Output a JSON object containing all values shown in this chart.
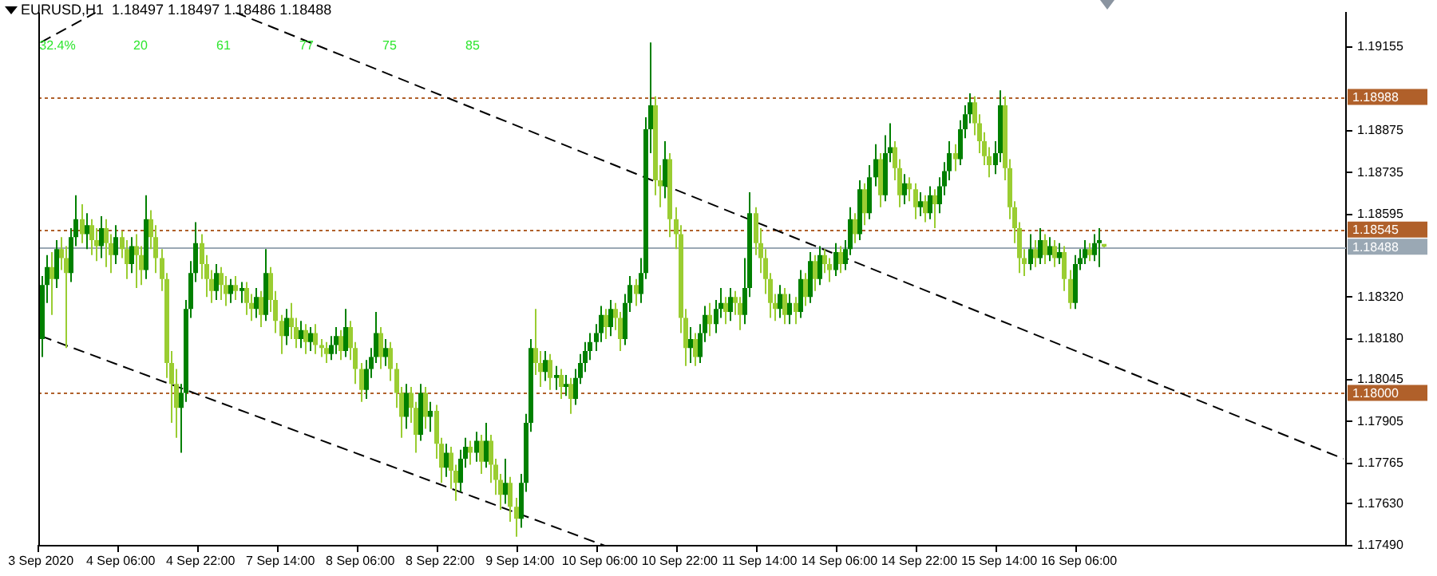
{
  "chart_data": {
    "type": "candlestick",
    "title": "EURUSD,H1  1.18497 1.18497 1.18486 1.18488",
    "categories": [
      "3 Sep 2020",
      null,
      null,
      null,
      null,
      null,
      null,
      null,
      null,
      null,
      null,
      null,
      null,
      null,
      null,
      null,
      "4 Sep 06:00",
      null,
      null,
      null,
      null,
      null,
      null,
      null,
      null,
      null,
      null,
      null,
      null,
      null,
      null,
      null,
      "4 Sep 22:00",
      null,
      null,
      null,
      null,
      null,
      null,
      null,
      null,
      null,
      null,
      null,
      null,
      null,
      null,
      null,
      "7 Sep 14:00",
      null,
      null,
      null,
      null,
      null,
      null,
      null,
      null,
      null,
      null,
      null,
      null,
      null,
      null,
      null,
      "8 Sep 06:00",
      null,
      null,
      null,
      null,
      null,
      null,
      null,
      null,
      null,
      null,
      null,
      null,
      null,
      null,
      null,
      "8 Sep 22:00",
      null,
      null,
      null,
      null,
      null,
      null,
      null,
      null,
      null,
      null,
      null,
      null,
      null,
      null,
      null,
      "9 Sep 14:00",
      null,
      null,
      null,
      null,
      null,
      null,
      null,
      null,
      null,
      null,
      null,
      null,
      null,
      null,
      null,
      "10 Sep 06:00",
      null,
      null,
      null,
      null,
      null,
      null,
      null,
      null,
      null,
      null,
      null,
      null,
      null,
      null,
      null,
      "10 Sep 22:00",
      null,
      null,
      null,
      null,
      null,
      null,
      null,
      null,
      null,
      null,
      null,
      null,
      null,
      null,
      null,
      "11 Sep 14:00",
      null,
      null,
      null,
      null,
      null,
      null,
      null,
      null,
      null,
      null,
      null,
      null,
      null,
      null,
      null,
      "14 Sep 06:00",
      null,
      null,
      null,
      null,
      null,
      null,
      null,
      null,
      null,
      null,
      null,
      null,
      null,
      null,
      null,
      "14 Sep 22:00",
      null,
      null,
      null,
      null,
      null,
      null,
      null,
      null,
      null,
      null,
      null,
      null,
      null,
      null,
      null,
      "15 Sep 14:00",
      null,
      null,
      null,
      null,
      null,
      null,
      null,
      null,
      null,
      null,
      null,
      null,
      null,
      null,
      null,
      "16 Sep 06:00",
      null,
      null,
      null,
      null,
      null,
      null,
      null,
      null,
      null,
      null,
      null,
      null,
      null,
      null,
      null,
      null,
      null,
      null,
      null,
      null,
      null,
      null,
      null,
      null,
      null,
      null,
      null,
      null,
      null,
      null,
      null,
      null,
      null,
      null,
      null,
      null,
      null,
      null,
      null,
      null,
      null,
      null,
      null,
      null,
      null,
      null,
      null,
      null,
      null,
      null,
      null,
      null,
      null
    ],
    "ohlc": [
      [
        1.1818,
        1.1839,
        1.1812,
        1.1836
      ],
      [
        1.1836,
        1.1846,
        1.183,
        1.1842
      ],
      [
        1.1842,
        1.1847,
        1.1826,
        1.1838
      ],
      [
        1.1838,
        1.1851,
        1.1835,
        1.1848
      ],
      [
        1.1848,
        1.1852,
        1.1841,
        1.1845
      ],
      [
        1.1845,
        1.1849,
        1.1815,
        1.184
      ],
      [
        1.184,
        1.1855,
        1.1837,
        1.1852
      ],
      [
        1.1852,
        1.1866,
        1.1849,
        1.1858
      ],
      [
        1.1858,
        1.1863,
        1.185,
        1.1853
      ],
      [
        1.1853,
        1.186,
        1.1848,
        1.1856
      ],
      [
        1.1856,
        1.1858,
        1.1846,
        1.1851
      ],
      [
        1.1851,
        1.1855,
        1.1844,
        1.1849
      ],
      [
        1.1849,
        1.1859,
        1.1845,
        1.1855
      ],
      [
        1.1855,
        1.1858,
        1.1842,
        1.185
      ],
      [
        1.185,
        1.1853,
        1.184,
        1.1846
      ],
      [
        1.1846,
        1.1856,
        1.1843,
        1.1852
      ],
      [
        1.1852,
        1.1854,
        1.1845,
        1.1848
      ],
      [
        1.1848,
        1.1851,
        1.1838,
        1.1843
      ],
      [
        1.1843,
        1.1852,
        1.184,
        1.1849
      ],
      [
        1.1849,
        1.1853,
        1.1835,
        1.1846
      ],
      [
        1.1846,
        1.1849,
        1.1836,
        1.1841
      ],
      [
        1.1841,
        1.1866,
        1.1838,
        1.1858
      ],
      [
        1.1858,
        1.1861,
        1.1848,
        1.1852
      ],
      [
        1.1852,
        1.1856,
        1.184,
        1.1845
      ],
      [
        1.1845,
        1.1848,
        1.1834,
        1.1838
      ],
      [
        1.1838,
        1.184,
        1.1805,
        1.181
      ],
      [
        1.181,
        1.1814,
        1.179,
        1.1803
      ],
      [
        1.1803,
        1.1808,
        1.1785,
        1.1795
      ],
      [
        1.1795,
        1.1803,
        1.178,
        1.18
      ],
      [
        1.18,
        1.1831,
        1.1797,
        1.1828
      ],
      [
        1.1828,
        1.1844,
        1.1825,
        1.184
      ],
      [
        1.184,
        1.1857,
        1.1837,
        1.185
      ],
      [
        1.185,
        1.1853,
        1.1838,
        1.1843
      ],
      [
        1.1843,
        1.1846,
        1.1832,
        1.1838
      ],
      [
        1.1838,
        1.1841,
        1.183,
        1.1834
      ],
      [
        1.1834,
        1.1843,
        1.1831,
        1.184
      ],
      [
        1.184,
        1.1842,
        1.1831,
        1.1836
      ],
      [
        1.1836,
        1.1839,
        1.1829,
        1.1833
      ],
      [
        1.1833,
        1.1838,
        1.183,
        1.1836
      ],
      [
        1.1836,
        1.1839,
        1.1831,
        1.1834
      ],
      [
        1.1834,
        1.1837,
        1.183,
        1.1835
      ],
      [
        1.1835,
        1.1837,
        1.1826,
        1.183
      ],
      [
        1.183,
        1.1833,
        1.1824,
        1.1828
      ],
      [
        1.1828,
        1.1835,
        1.1825,
        1.1832
      ],
      [
        1.1832,
        1.1834,
        1.1822,
        1.1826
      ],
      [
        1.1826,
        1.1848,
        1.1824,
        1.184
      ],
      [
        1.184,
        1.1842,
        1.1827,
        1.1831
      ],
      [
        1.1831,
        1.1834,
        1.182,
        1.1824
      ],
      [
        1.1824,
        1.1826,
        1.1813,
        1.1819
      ],
      [
        1.1819,
        1.1828,
        1.1816,
        1.1825
      ],
      [
        1.1825,
        1.183,
        1.1818,
        1.1822
      ],
      [
        1.1822,
        1.1825,
        1.1815,
        1.1818
      ],
      [
        1.1818,
        1.1824,
        1.1815,
        1.1821
      ],
      [
        1.1821,
        1.1823,
        1.1813,
        1.1817
      ],
      [
        1.1817,
        1.1822,
        1.1814,
        1.182
      ],
      [
        1.182,
        1.1823,
        1.1813,
        1.1816
      ],
      [
        1.1816,
        1.1818,
        1.1812,
        1.1815
      ],
      [
        1.1815,
        1.1817,
        1.181,
        1.1813
      ],
      [
        1.1813,
        1.1819,
        1.1811,
        1.1816
      ],
      [
        1.1816,
        1.1822,
        1.1813,
        1.1819
      ],
      [
        1.1819,
        1.1821,
        1.1811,
        1.1814
      ],
      [
        1.1814,
        1.1828,
        1.1812,
        1.1822
      ],
      [
        1.1822,
        1.1824,
        1.1811,
        1.1815
      ],
      [
        1.1815,
        1.1817,
        1.1803,
        1.1808
      ],
      [
        1.1808,
        1.181,
        1.1797,
        1.1801
      ],
      [
        1.1801,
        1.1811,
        1.1798,
        1.1808
      ],
      [
        1.1808,
        1.1815,
        1.1805,
        1.1812
      ],
      [
        1.1812,
        1.1827,
        1.181,
        1.182
      ],
      [
        1.182,
        1.1822,
        1.1808,
        1.1812
      ],
      [
        1.1812,
        1.1818,
        1.1809,
        1.1815
      ],
      [
        1.1815,
        1.1817,
        1.1804,
        1.1808
      ],
      [
        1.1808,
        1.181,
        1.1795,
        1.18
      ],
      [
        1.18,
        1.1802,
        1.1785,
        1.1792
      ],
      [
        1.1792,
        1.1803,
        1.1788,
        1.18
      ],
      [
        1.18,
        1.1802,
        1.179,
        1.1795
      ],
      [
        1.1795,
        1.1797,
        1.178,
        1.1786
      ],
      [
        1.1786,
        1.1803,
        1.1784,
        1.18
      ],
      [
        1.18,
        1.1802,
        1.1788,
        1.1792
      ],
      [
        1.1792,
        1.1797,
        1.1787,
        1.1794
      ],
      [
        1.1794,
        1.1796,
        1.1778,
        1.1783
      ],
      [
        1.1783,
        1.1785,
        1.177,
        1.1775
      ],
      [
        1.1775,
        1.1783,
        1.1772,
        1.178
      ],
      [
        1.178,
        1.1782,
        1.1768,
        1.1774
      ],
      [
        1.1774,
        1.1776,
        1.1764,
        1.177
      ],
      [
        1.177,
        1.1781,
        1.1767,
        1.1778
      ],
      [
        1.1778,
        1.1785,
        1.1775,
        1.1782
      ],
      [
        1.1782,
        1.1784,
        1.1776,
        1.178
      ],
      [
        1.178,
        1.1787,
        1.1777,
        1.1784
      ],
      [
        1.1784,
        1.1786,
        1.1773,
        1.1777
      ],
      [
        1.1777,
        1.179,
        1.1775,
        1.1784
      ],
      [
        1.1784,
        1.1786,
        1.177,
        1.1776
      ],
      [
        1.1776,
        1.1778,
        1.1766,
        1.1771
      ],
      [
        1.1771,
        1.1773,
        1.1761,
        1.1766
      ],
      [
        1.1766,
        1.1778,
        1.1763,
        1.177
      ],
      [
        1.177,
        1.1772,
        1.1757,
        1.1762
      ],
      [
        1.1762,
        1.1765,
        1.1752,
        1.1758
      ],
      [
        1.1758,
        1.1773,
        1.1755,
        1.177
      ],
      [
        1.177,
        1.1793,
        1.1767,
        1.179
      ],
      [
        1.179,
        1.1818,
        1.1787,
        1.1815
      ],
      [
        1.1815,
        1.1828,
        1.1806,
        1.181
      ],
      [
        1.181,
        1.1814,
        1.1802,
        1.1807
      ],
      [
        1.1807,
        1.1814,
        1.1804,
        1.1811
      ],
      [
        1.1811,
        1.1813,
        1.1801,
        1.1805
      ],
      [
        1.1805,
        1.1809,
        1.1801,
        1.1806
      ],
      [
        1.1806,
        1.1808,
        1.1798,
        1.1802
      ],
      [
        1.1802,
        1.1806,
        1.1799,
        1.1803
      ],
      [
        1.1803,
        1.1805,
        1.1793,
        1.1798
      ],
      [
        1.1798,
        1.1808,
        1.1796,
        1.1805
      ],
      [
        1.1805,
        1.1813,
        1.1803,
        1.181
      ],
      [
        1.181,
        1.1817,
        1.1807,
        1.1814
      ],
      [
        1.1814,
        1.182,
        1.1811,
        1.1817
      ],
      [
        1.1817,
        1.1823,
        1.1814,
        1.182
      ],
      [
        1.182,
        1.1829,
        1.1817,
        1.1826
      ],
      [
        1.1826,
        1.1828,
        1.1818,
        1.1822
      ],
      [
        1.1822,
        1.1831,
        1.1819,
        1.1828
      ],
      [
        1.1828,
        1.183,
        1.1821,
        1.1825
      ],
      [
        1.1825,
        1.1827,
        1.1814,
        1.1818
      ],
      [
        1.1818,
        1.1833,
        1.1816,
        1.183
      ],
      [
        1.183,
        1.1839,
        1.1827,
        1.1836
      ],
      [
        1.1836,
        1.1838,
        1.1829,
        1.1833
      ],
      [
        1.1833,
        1.1845,
        1.183,
        1.184
      ],
      [
        1.184,
        1.1892,
        1.1838,
        1.1888
      ],
      [
        1.1888,
        1.1917,
        1.188,
        1.1896
      ],
      [
        1.1896,
        1.1899,
        1.1866,
        1.1871
      ],
      [
        1.1871,
        1.1876,
        1.1862,
        1.1869
      ],
      [
        1.1869,
        1.1884,
        1.1865,
        1.1878
      ],
      [
        1.1878,
        1.188,
        1.1852,
        1.1858
      ],
      [
        1.1858,
        1.1862,
        1.1848,
        1.1853
      ],
      [
        1.1853,
        1.1856,
        1.182,
        1.1825
      ],
      [
        1.1825,
        1.1828,
        1.1809,
        1.1815
      ],
      [
        1.1815,
        1.1822,
        1.181,
        1.1818
      ],
      [
        1.1818,
        1.182,
        1.1809,
        1.1812
      ],
      [
        1.1812,
        1.1823,
        1.181,
        1.182
      ],
      [
        1.182,
        1.1829,
        1.1817,
        1.1826
      ],
      [
        1.1826,
        1.183,
        1.1819,
        1.1823
      ],
      [
        1.1823,
        1.1831,
        1.182,
        1.1828
      ],
      [
        1.1828,
        1.1835,
        1.1825,
        1.183
      ],
      [
        1.183,
        1.1832,
        1.1823,
        1.1827
      ],
      [
        1.1827,
        1.1835,
        1.1824,
        1.1832
      ],
      [
        1.1832,
        1.1834,
        1.1826,
        1.183
      ],
      [
        1.183,
        1.1832,
        1.1821,
        1.1826
      ],
      [
        1.1826,
        1.1845,
        1.1823,
        1.1835
      ],
      [
        1.1835,
        1.1867,
        1.1832,
        1.186
      ],
      [
        1.186,
        1.1862,
        1.1846,
        1.185
      ],
      [
        1.185,
        1.1855,
        1.184,
        1.1845
      ],
      [
        1.1845,
        1.1848,
        1.1833,
        1.1838
      ],
      [
        1.1838,
        1.184,
        1.1825,
        1.183
      ],
      [
        1.183,
        1.1833,
        1.1824,
        1.1828
      ],
      [
        1.1828,
        1.1836,
        1.1825,
        1.1833
      ],
      [
        1.1833,
        1.1835,
        1.1823,
        1.1826
      ],
      [
        1.1826,
        1.1833,
        1.1823,
        1.183
      ],
      [
        1.183,
        1.1832,
        1.1823,
        1.1827
      ],
      [
        1.1827,
        1.1841,
        1.1825,
        1.1838
      ],
      [
        1.1838,
        1.184,
        1.1829,
        1.1832
      ],
      [
        1.1832,
        1.1847,
        1.183,
        1.1844
      ],
      [
        1.1844,
        1.1846,
        1.1834,
        1.1838
      ],
      [
        1.1838,
        1.1849,
        1.1836,
        1.1846
      ],
      [
        1.1846,
        1.1848,
        1.184,
        1.1843
      ],
      [
        1.1843,
        1.1845,
        1.1837,
        1.1841
      ],
      [
        1.1841,
        1.185,
        1.1839,
        1.1847
      ],
      [
        1.1847,
        1.1849,
        1.184,
        1.1843
      ],
      [
        1.1843,
        1.1851,
        1.1841,
        1.1848
      ],
      [
        1.1848,
        1.1862,
        1.1846,
        1.1858
      ],
      [
        1.1858,
        1.186,
        1.185,
        1.1853
      ],
      [
        1.1853,
        1.1871,
        1.1851,
        1.1868
      ],
      [
        1.1868,
        1.187,
        1.1856,
        1.186
      ],
      [
        1.186,
        1.1876,
        1.1858,
        1.1872
      ],
      [
        1.1872,
        1.1883,
        1.1869,
        1.1878
      ],
      [
        1.1878,
        1.188,
        1.1862,
        1.1866
      ],
      [
        1.1866,
        1.1886,
        1.1864,
        1.188
      ],
      [
        1.188,
        1.189,
        1.1877,
        1.1882
      ],
      [
        1.1882,
        1.1884,
        1.1871,
        1.1875
      ],
      [
        1.1875,
        1.1878,
        1.1862,
        1.1866
      ],
      [
        1.1866,
        1.1873,
        1.1863,
        1.187
      ],
      [
        1.187,
        1.1872,
        1.1864,
        1.1868
      ],
      [
        1.1868,
        1.187,
        1.1858,
        1.1862
      ],
      [
        1.1862,
        1.1867,
        1.1859,
        1.1864
      ],
      [
        1.1864,
        1.1866,
        1.1857,
        1.186
      ],
      [
        1.186,
        1.1869,
        1.1858,
        1.1866
      ],
      [
        1.1866,
        1.1868,
        1.1855,
        1.1863
      ],
      [
        1.1863,
        1.1872,
        1.186,
        1.1869
      ],
      [
        1.1869,
        1.1877,
        1.1866,
        1.1874
      ],
      [
        1.1874,
        1.1884,
        1.1871,
        1.188
      ],
      [
        1.188,
        1.1883,
        1.1874,
        1.1878
      ],
      [
        1.1878,
        1.1891,
        1.1876,
        1.1888
      ],
      [
        1.1888,
        1.1896,
        1.1885,
        1.1893
      ],
      [
        1.1893,
        1.19,
        1.189,
        1.1897
      ],
      [
        1.1897,
        1.1899,
        1.1886,
        1.189
      ],
      [
        1.189,
        1.1893,
        1.188,
        1.1884
      ],
      [
        1.1884,
        1.1887,
        1.1876,
        1.1879
      ],
      [
        1.1879,
        1.1882,
        1.1872,
        1.1876
      ],
      [
        1.1876,
        1.1884,
        1.1873,
        1.188
      ],
      [
        1.188,
        1.1901,
        1.1877,
        1.1896
      ],
      [
        1.1896,
        1.1899,
        1.1871,
        1.1875
      ],
      [
        1.1875,
        1.1878,
        1.1858,
        1.1862
      ],
      [
        1.1862,
        1.1864,
        1.185,
        1.1855
      ],
      [
        1.1855,
        1.1857,
        1.184,
        1.1845
      ],
      [
        1.1845,
        1.1848,
        1.1839,
        1.1843
      ],
      [
        1.1843,
        1.1853,
        1.1841,
        1.1848
      ],
      [
        1.1848,
        1.1851,
        1.1842,
        1.1845
      ],
      [
        1.1845,
        1.1855,
        1.1843,
        1.1851
      ],
      [
        1.1851,
        1.1853,
        1.1843,
        1.1846
      ],
      [
        1.1846,
        1.1852,
        1.1844,
        1.1849
      ],
      [
        1.1849,
        1.1851,
        1.1842,
        1.1845
      ],
      [
        1.1845,
        1.185,
        1.1843,
        1.1847
      ],
      [
        1.1847,
        1.1849,
        1.1834,
        1.1838
      ],
      [
        1.1838,
        1.1841,
        1.1828,
        1.183
      ],
      [
        1.183,
        1.1846,
        1.1828,
        1.1843
      ],
      [
        1.1843,
        1.1848,
        1.1841,
        1.1845
      ],
      [
        1.1845,
        1.1851,
        1.1843,
        1.1848
      ],
      [
        1.1848,
        1.185,
        1.1844,
        1.1846
      ],
      [
        1.1846,
        1.1853,
        1.1844,
        1.185
      ],
      [
        1.185,
        1.1855,
        1.1842,
        1.1851
      ],
      [
        1.18497,
        1.18497,
        1.18486,
        1.18488
      ],
      null,
      null,
      null,
      null,
      null,
      null,
      null,
      null,
      null,
      null,
      null,
      null,
      null,
      null,
      null,
      null,
      null,
      null,
      null,
      null,
      null,
      null,
      null,
      null,
      null,
      null,
      null,
      null,
      null,
      null,
      null,
      null,
      null,
      null,
      null,
      null,
      null,
      null,
      null,
      null,
      null,
      null,
      null,
      null,
      null,
      null,
      null,
      null
    ],
    "colors": [
      "#008000",
      "#008000",
      "#9acd32",
      "#008000",
      "#9acd32",
      "#9acd32",
      "#008000",
      "#008000",
      "#9acd32",
      "#008000",
      "#9acd32",
      "#9acd32",
      "#008000",
      "#9acd32",
      "#9acd32",
      "#008000",
      "#9acd32",
      "#9acd32",
      "#008000",
      "#9acd32",
      "#9acd32",
      "#008000",
      "#9acd32",
      "#9acd32",
      "#9acd32",
      "#9acd32",
      "#9acd32",
      "#9acd32",
      "#008000",
      "#008000",
      "#008000",
      "#008000",
      "#9acd32",
      "#9acd32",
      "#9acd32",
      "#008000",
      "#9acd32",
      "#9acd32",
      "#008000",
      "#9acd32",
      "#008000",
      "#9acd32",
      "#9acd32",
      "#008000",
      "#9acd32",
      "#008000",
      "#9acd32",
      "#9acd32",
      "#9acd32",
      "#008000",
      "#9acd32",
      "#9acd32",
      "#008000",
      "#9acd32",
      "#008000",
      "#9acd32",
      "#9acd32",
      "#9acd32",
      "#008000",
      "#008000",
      "#9acd32",
      "#008000",
      "#9acd32",
      "#9acd32",
      "#9acd32",
      "#008000",
      "#008000",
      "#008000",
      "#9acd32",
      "#008000",
      "#9acd32",
      "#9acd32",
      "#9acd32",
      "#008000",
      "#9acd32",
      "#9acd32",
      "#008000",
      "#9acd32",
      "#008000",
      "#9acd32",
      "#9acd32",
      "#008000",
      "#9acd32",
      "#9acd32",
      "#008000",
      "#008000",
      "#9acd32",
      "#008000",
      "#9acd32",
      "#008000",
      "#9acd32",
      "#9acd32",
      "#9acd32",
      "#008000",
      "#9acd32",
      "#9acd32",
      "#008000",
      "#008000",
      "#008000",
      "#9acd32",
      "#9acd32",
      "#008000",
      "#9acd32",
      "#008000",
      "#9acd32",
      "#008000",
      "#9acd32",
      "#008000",
      "#008000",
      "#008000",
      "#008000",
      "#008000",
      "#008000",
      "#9acd32",
      "#008000",
      "#9acd32",
      "#9acd32",
      "#008000",
      "#008000",
      "#9acd32",
      "#008000",
      "#008000",
      "#008000",
      "#9acd32",
      "#9acd32",
      "#008000",
      "#9acd32",
      "#9acd32",
      "#9acd32",
      "#9acd32",
      "#008000",
      "#9acd32",
      "#008000",
      "#008000",
      "#9acd32",
      "#008000",
      "#008000",
      "#9acd32",
      "#008000",
      "#9acd32",
      "#9acd32",
      "#008000",
      "#008000",
      "#9acd32",
      "#9acd32",
      "#9acd32",
      "#9acd32",
      "#9acd32",
      "#008000",
      "#9acd32",
      "#008000",
      "#9acd32",
      "#008000",
      "#9acd32",
      "#008000",
      "#9acd32",
      "#008000",
      "#9acd32",
      "#9acd32",
      "#008000",
      "#9acd32",
      "#008000",
      "#008000",
      "#9acd32",
      "#008000",
      "#9acd32",
      "#008000",
      "#008000",
      "#9acd32",
      "#008000",
      "#008000",
      "#9acd32",
      "#9acd32",
      "#008000",
      "#9acd32",
      "#9acd32",
      "#008000",
      "#9acd32",
      "#008000",
      "#9acd32",
      "#008000",
      "#008000",
      "#008000",
      "#9acd32",
      "#008000",
      "#008000",
      "#008000",
      "#9acd32",
      "#9acd32",
      "#9acd32",
      "#9acd32",
      "#008000",
      "#008000",
      "#9acd32",
      "#9acd32",
      "#9acd32",
      "#9acd32",
      "#9acd32",
      "#008000",
      "#9acd32",
      "#008000",
      "#9acd32",
      "#008000",
      "#9acd32",
      "#008000",
      "#9acd32",
      "#9acd32",
      "#008000",
      "#008000",
      "#008000",
      "#9acd32",
      "#008000",
      "#008000",
      "#9acd32",
      null,
      null,
      null,
      null,
      null,
      null,
      null,
      null,
      null,
      null,
      null,
      null,
      null,
      null,
      null,
      null,
      null,
      null,
      null,
      null,
      null,
      null,
      null,
      null,
      null,
      null,
      null,
      null,
      null,
      null,
      null,
      null,
      null,
      null,
      null,
      null,
      null,
      null,
      null,
      null,
      null,
      null,
      null,
      null,
      null,
      null,
      null,
      null
    ],
    "series": [
      {
        "type": "line",
        "color": "#000000",
        "line_style": "dashed",
        "values": [
          1.1819,
          null,
          null,
          null,
          null,
          null,
          null,
          null,
          null,
          null,
          null,
          null,
          null,
          null,
          null,
          null,
          null,
          null,
          null,
          null,
          null,
          null,
          null,
          null,
          null,
          null,
          null,
          null,
          null,
          null,
          null,
          null,
          null,
          null,
          null,
          null,
          null,
          null,
          null,
          null,
          null,
          null,
          null,
          null,
          null,
          null,
          null,
          null,
          null,
          null,
          null,
          null,
          null,
          null,
          null,
          null,
          null,
          null,
          null,
          null,
          null,
          null,
          null,
          null,
          null,
          null,
          null,
          null,
          null,
          null,
          null,
          null,
          null,
          null,
          null,
          null,
          null,
          null,
          null,
          null,
          null,
          null,
          null,
          null,
          null,
          null,
          null,
          null,
          null,
          null,
          null,
          null,
          null,
          null,
          null,
          null,
          null,
          null,
          null,
          null,
          null,
          null,
          null,
          null,
          null,
          null,
          null,
          null,
          null,
          null,
          null,
          null,
          null,
          1.1749,
          null,
          null,
          null,
          null,
          null,
          null,
          null,
          null,
          null,
          null,
          null,
          null,
          null,
          null,
          null,
          null,
          null,
          null,
          null,
          null,
          null,
          null,
          null,
          null,
          null,
          null,
          null,
          null,
          null,
          null,
          null,
          null,
          null,
          null,
          null,
          null,
          null,
          null,
          null,
          null,
          null,
          null,
          null,
          null,
          null,
          null,
          null,
          null,
          null,
          null,
          null,
          null,
          null,
          null,
          null,
          null,
          null,
          null,
          null,
          null,
          null,
          null,
          null,
          null,
          null,
          null,
          null,
          null,
          null,
          null,
          null,
          null,
          null,
          null,
          null,
          null,
          null,
          null,
          null,
          null,
          null,
          null,
          null,
          null,
          null,
          null,
          null,
          null,
          null,
          null,
          null,
          null,
          null,
          null,
          null,
          null,
          null,
          null,
          null,
          null,
          null,
          null,
          null,
          null,
          null,
          null,
          null,
          null,
          null,
          null,
          null,
          null,
          null,
          null,
          null,
          null,
          null,
          null,
          null,
          null,
          null,
          null,
          null,
          null,
          null,
          null,
          null,
          null,
          null,
          null,
          null,
          null,
          null,
          null,
          null,
          null,
          null,
          null,
          null,
          null,
          null,
          null,
          null,
          null,
          null,
          null,
          null,
          null
        ]
      },
      {
        "type": "line",
        "color": "#000000",
        "line_style": "dashed",
        "values": [
          null,
          null,
          null,
          null,
          null,
          null,
          null,
          null,
          null,
          null,
          null,
          null,
          null,
          null,
          null,
          null,
          null,
          null,
          null,
          null,
          null,
          null,
          null,
          null,
          null,
          null,
          null,
          null,
          null,
          null,
          null,
          null,
          null,
          null,
          null,
          null,
          null,
          null,
          null,
          1.1927,
          null,
          null,
          null,
          null,
          null,
          null,
          null,
          null,
          null,
          null,
          null,
          null,
          null,
          null,
          null,
          null,
          null,
          null,
          null,
          null,
          null,
          null,
          null,
          null,
          null,
          null,
          null,
          null,
          null,
          null,
          null,
          null,
          null,
          null,
          null,
          null,
          null,
          null,
          null,
          null,
          null,
          null,
          null,
          null,
          null,
          null,
          null,
          null,
          null,
          null,
          null,
          null,
          null,
          null,
          null,
          null,
          null,
          null,
          null,
          null,
          null,
          null,
          null,
          null,
          null,
          null,
          null,
          null,
          null,
          null,
          null,
          null,
          null,
          null,
          null,
          null,
          null,
          null,
          null,
          null,
          null,
          null,
          null,
          null,
          null,
          null,
          null,
          null,
          null,
          null,
          null,
          null,
          null,
          null,
          null,
          null,
          null,
          null,
          null,
          null,
          null,
          null,
          null,
          null,
          null,
          null,
          null,
          null,
          null,
          null,
          null,
          null,
          null,
          null,
          null,
          null,
          null,
          null,
          null,
          null,
          null,
          null,
          null,
          null,
          null,
          null,
          null,
          null,
          null,
          null,
          null,
          null,
          null,
          null,
          null,
          null,
          null,
          null,
          null,
          null,
          null,
          null,
          null,
          null,
          null,
          null,
          null,
          null,
          null,
          null,
          null,
          null,
          null,
          null,
          null,
          null,
          null,
          null,
          null,
          null,
          null,
          null,
          null,
          null,
          null,
          null,
          null,
          null,
          null,
          null,
          null,
          null,
          null,
          null,
          null,
          null,
          null,
          null,
          null,
          null,
          null,
          null,
          null,
          null,
          null,
          null,
          null,
          null,
          null,
          null,
          null,
          null,
          null,
          null,
          null,
          null,
          null,
          null,
          null,
          null,
          null,
          null,
          null,
          null,
          null,
          null,
          null,
          null,
          null,
          null,
          null,
          null,
          null,
          null,
          null,
          null,
          null,
          null,
          null,
          null,
          null,
          1.1778
        ]
      },
      {
        "type": "line",
        "color": "#000000",
        "line_style": "dashed",
        "values": [
          1.1917,
          null,
          null,
          null,
          null,
          null,
          null,
          null,
          null,
          null,
          null,
          1.1927,
          null,
          null,
          null,
          null,
          null,
          null,
          null,
          null,
          null,
          null,
          null,
          null,
          null,
          null,
          null,
          null,
          null,
          null,
          null,
          null,
          null,
          null,
          null,
          null,
          null,
          null,
          null,
          null,
          null,
          null,
          null,
          null,
          null,
          null,
          null,
          null,
          null,
          null,
          null,
          null,
          null,
          null,
          null,
          null,
          null,
          null,
          null,
          null,
          null,
          null,
          null,
          null,
          null,
          null,
          null,
          null,
          null,
          null,
          null,
          null,
          null,
          null,
          null,
          null,
          null,
          null,
          null,
          null,
          null,
          null,
          null,
          null,
          null,
          null,
          null,
          null,
          null,
          null,
          null,
          null,
          null,
          null,
          null,
          null,
          null,
          null,
          null,
          null,
          null,
          null,
          null,
          null,
          null,
          null,
          null,
          null,
          null,
          null,
          null,
          null,
          null,
          null,
          null,
          null,
          null,
          null,
          null,
          null,
          null,
          null,
          null,
          null,
          null,
          null,
          null,
          null,
          null,
          null,
          null,
          null,
          null,
          null,
          null,
          null,
          null,
          null,
          null,
          null,
          null,
          null,
          null,
          null,
          null,
          null,
          null,
          null,
          null,
          null,
          null,
          null,
          null,
          null,
          null,
          null,
          null,
          null,
          null,
          null,
          null,
          null,
          null,
          null,
          null,
          null,
          null,
          null,
          null,
          null,
          null,
          null,
          null,
          null,
          null,
          null,
          null,
          null,
          null,
          null,
          null,
          null,
          null,
          null,
          null,
          null,
          null,
          null,
          null,
          null,
          null,
          null,
          null,
          null,
          null,
          null,
          null,
          null,
          null,
          null,
          null,
          null,
          null,
          null,
          null,
          null,
          null,
          null,
          null,
          null,
          null,
          null,
          null,
          null,
          null,
          null,
          null,
          null,
          null,
          null,
          null,
          null,
          null,
          null,
          null,
          null,
          null,
          null,
          null,
          null,
          null,
          null,
          null,
          null,
          null,
          null,
          null,
          null,
          null,
          null,
          null,
          null,
          null,
          null,
          null,
          null,
          null,
          null,
          null,
          null,
          null,
          null,
          null,
          null,
          null,
          null,
          null,
          null,
          null,
          null,
          null,
          null
        ]
      }
    ],
    "ylim": [
      1.1749,
      1.1927
    ],
    "yticks": [
      1.19155,
      1.18875,
      1.18735,
      1.18595,
      {
        "value": 1.1832,
        "label": "1.18320"
      },
      {
        "value": 1.1818,
        "label": "1.18180"
      },
      1.18045,
      1.17905,
      1.17765,
      {
        "value": 1.1763,
        "label": "1.17630"
      },
      {
        "value": 1.1749,
        "label": "1.17490"
      }
    ],
    "ref_lines": [
      {
        "axis": "y",
        "value": 1.18988,
        "label": "1.18988",
        "color": "#b0602a",
        "line_style": "dotted"
      },
      {
        "axis": "y",
        "value": 1.18545,
        "label": "1.18545",
        "color": "#b0602a",
        "line_style": "dotted"
      },
      {
        "axis": "y",
        "value": 1.18,
        "label": "1.18000",
        "color": "#b0602a",
        "line_style": "dotted"
      },
      {
        "axis": "y",
        "value": 1.18488,
        "label": "1.18488",
        "color": "#9aa8b4",
        "line_style": "solid"
      }
    ],
    "annotations": [
      "32.4%",
      "20",
      "61",
      "77",
      "75",
      "85"
    ],
    "grid": false,
    "legend": false
  }
}
